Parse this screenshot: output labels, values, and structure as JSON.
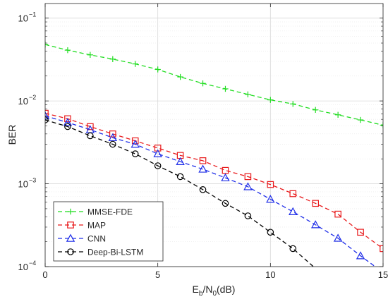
{
  "chart_data": {
    "type": "line",
    "title": "",
    "xlabel": {
      "main": "E",
      "sub_b": "b",
      "slash": "/N",
      "sub_0": "0",
      "unit": "(dB)"
    },
    "ylabel": "BER",
    "xlim": [
      0,
      15
    ],
    "ylim": [
      0.0001,
      0.15
    ],
    "yscale": "log",
    "grid": true,
    "legend_position": "bottom-left",
    "x_ticks": [
      0,
      5,
      10,
      15
    ],
    "y_ticks": [
      {
        "value": 0.0001,
        "base": "10",
        "exp": "−4"
      },
      {
        "value": 0.001,
        "base": "10",
        "exp": "−3"
      },
      {
        "value": 0.01,
        "base": "10",
        "exp": "−2"
      },
      {
        "value": 0.1,
        "base": "10",
        "exp": "−1"
      }
    ],
    "series": [
      {
        "name": "MMSE-FDE",
        "color": "#22dd22",
        "marker": "plus",
        "x": [
          0,
          1,
          2,
          3,
          4,
          5,
          6,
          7,
          8,
          9,
          10,
          11,
          12,
          13,
          14,
          15
        ],
        "y": [
          0.048,
          0.041,
          0.036,
          0.032,
          0.028,
          0.024,
          0.0195,
          0.0163,
          0.014,
          0.012,
          0.0103,
          0.0092,
          0.0078,
          0.0068,
          0.0059,
          0.0051
        ]
      },
      {
        "name": "MAP",
        "color": "#e8191b",
        "marker": "square",
        "x": [
          0,
          1,
          2,
          3,
          4,
          5,
          6,
          7,
          8,
          9,
          10,
          11,
          12,
          13,
          14,
          15
        ],
        "y": [
          0.0071,
          0.0061,
          0.0049,
          0.004,
          0.0033,
          0.0027,
          0.0022,
          0.0019,
          0.00145,
          0.00122,
          0.00098,
          0.00076,
          0.00058,
          0.00043,
          0.00026,
          0.000165
        ]
      },
      {
        "name": "CNN",
        "color": "#1f2ee8",
        "marker": "triangle",
        "x": [
          0,
          1,
          2,
          3,
          4,
          5,
          6,
          7,
          8,
          9,
          10,
          11,
          12,
          13,
          14,
          15
        ],
        "y": [
          0.0066,
          0.0055,
          0.0045,
          0.0036,
          0.003,
          0.0023,
          0.00185,
          0.0015,
          0.00118,
          0.00092,
          0.00065,
          0.00046,
          0.00032,
          0.00022,
          0.000135,
          8.5e-05
        ]
      },
      {
        "name": "Deep-Bi-LSTM",
        "color": "#000000",
        "marker": "circle",
        "x": [
          0,
          1,
          2,
          3,
          4,
          5,
          6,
          7,
          8,
          9,
          10,
          11,
          12
        ],
        "y": [
          0.0059,
          0.0049,
          0.0038,
          0.003,
          0.0023,
          0.00165,
          0.00122,
          0.00085,
          0.00058,
          0.00041,
          0.00026,
          0.000165,
          9.5e-05
        ]
      }
    ]
  }
}
